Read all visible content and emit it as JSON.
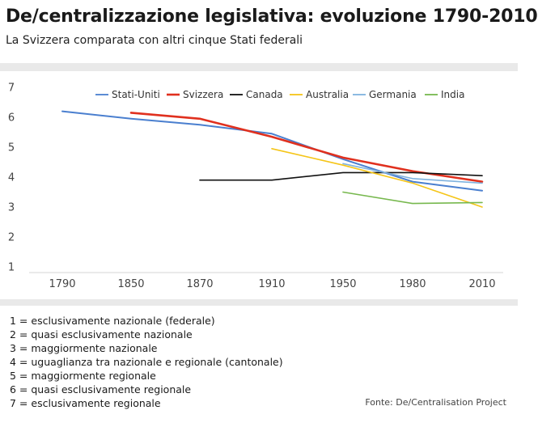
{
  "header": {
    "title": "De/centralizzazione legislativa: evoluzione 1790-2010",
    "subtitle": "La Svizzera comparata con altri cinque Stati federali"
  },
  "chart_data": {
    "type": "line",
    "categories": [
      "1790",
      "1850",
      "1870",
      "1910",
      "1950",
      "1980",
      "2010"
    ],
    "yticks": [
      1,
      2,
      3,
      4,
      5,
      6,
      7
    ],
    "ylim": [
      1,
      7
    ],
    "grid": false,
    "legend_position": "top",
    "series": [
      {
        "name": "Stati-Uniti",
        "color": "#4a7fcf",
        "width": 2,
        "values": [
          6.2,
          5.95,
          5.75,
          5.45,
          4.6,
          3.85,
          3.55
        ]
      },
      {
        "name": "Svizzera",
        "color": "#e0301e",
        "width": 2.6,
        "values": [
          null,
          6.15,
          5.95,
          5.35,
          4.65,
          4.2,
          3.85
        ]
      },
      {
        "name": "Canada",
        "color": "#111111",
        "width": 1.6,
        "values": [
          null,
          null,
          3.9,
          3.9,
          4.15,
          4.15,
          4.05
        ]
      },
      {
        "name": "Australia",
        "color": "#f5c518",
        "width": 1.6,
        "values": [
          null,
          null,
          null,
          4.95,
          4.4,
          3.8,
          3.0
        ]
      },
      {
        "name": "Germania",
        "color": "#7fb2df",
        "width": 1.6,
        "values": [
          null,
          null,
          null,
          null,
          4.45,
          3.95,
          3.8
        ]
      },
      {
        "name": "India",
        "color": "#77b84e",
        "width": 1.6,
        "values": [
          null,
          null,
          null,
          null,
          3.5,
          3.12,
          3.15
        ]
      }
    ]
  },
  "scale_notes": [
    "1 = esclusivamente nazionale (federale)",
    "2 = quasi esclusivamente nazionale",
    "3 = maggiormente nazionale",
    "4 = uguaglianza tra nazionale e regionale (cantonale)",
    "5 = maggiormente regionale",
    "6 = quasi esclusivamente regionale",
    "7 = esclusivamente regionale"
  ],
  "source": "Fonte: De/Centralisation Project"
}
